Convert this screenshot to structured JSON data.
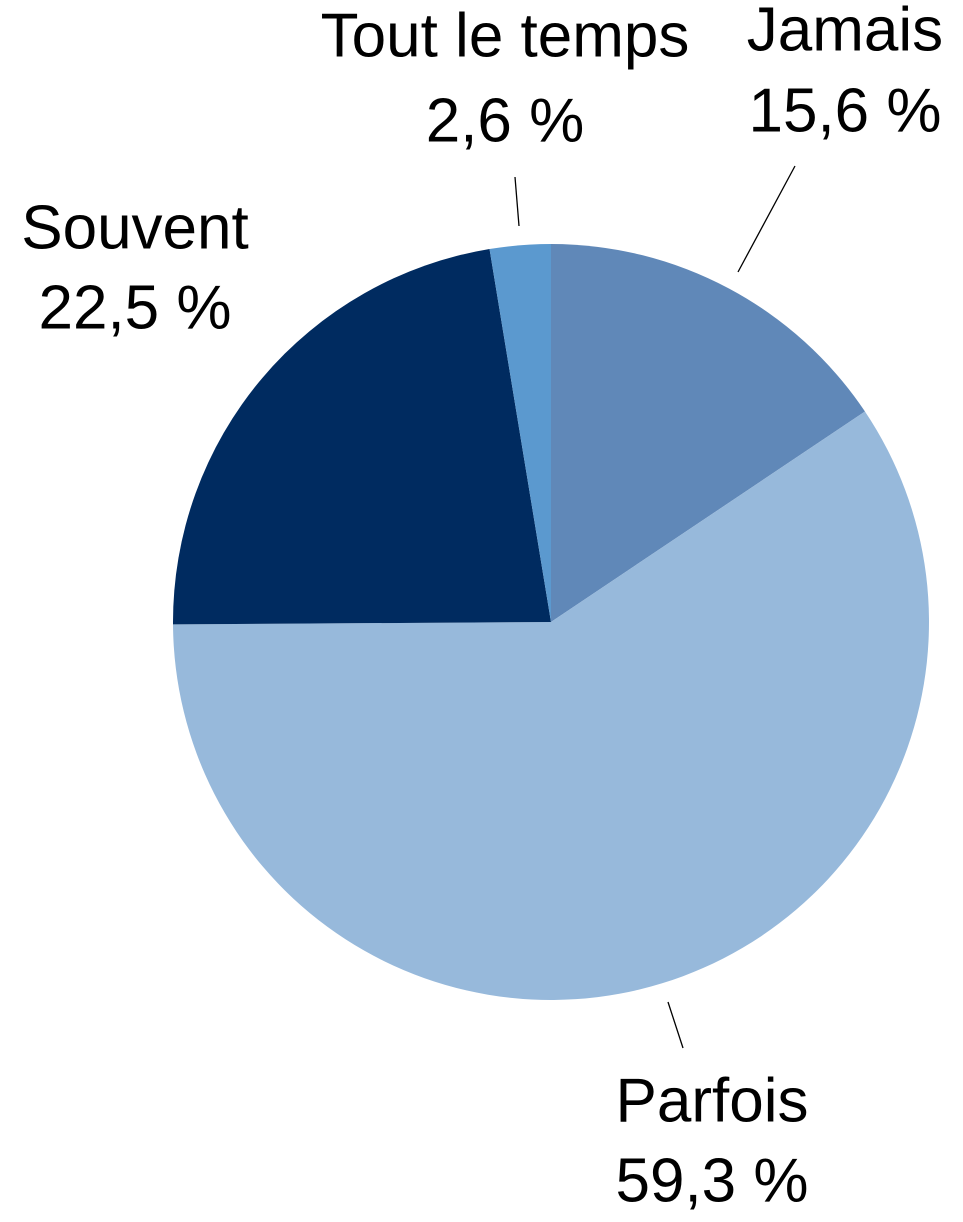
{
  "chart_data": {
    "type": "pie",
    "categories": [
      "Jamais",
      "Parfois",
      "Souvent",
      "Tout le temps"
    ],
    "values": [
      15.6,
      59.3,
      22.5,
      2.6
    ],
    "value_labels": [
      "15,6 %",
      "59,3 %",
      "22,5 %",
      "2,6 %"
    ],
    "colors": [
      "#6088b8",
      "#97b9db",
      "#002b60",
      "#5b99cf"
    ]
  }
}
